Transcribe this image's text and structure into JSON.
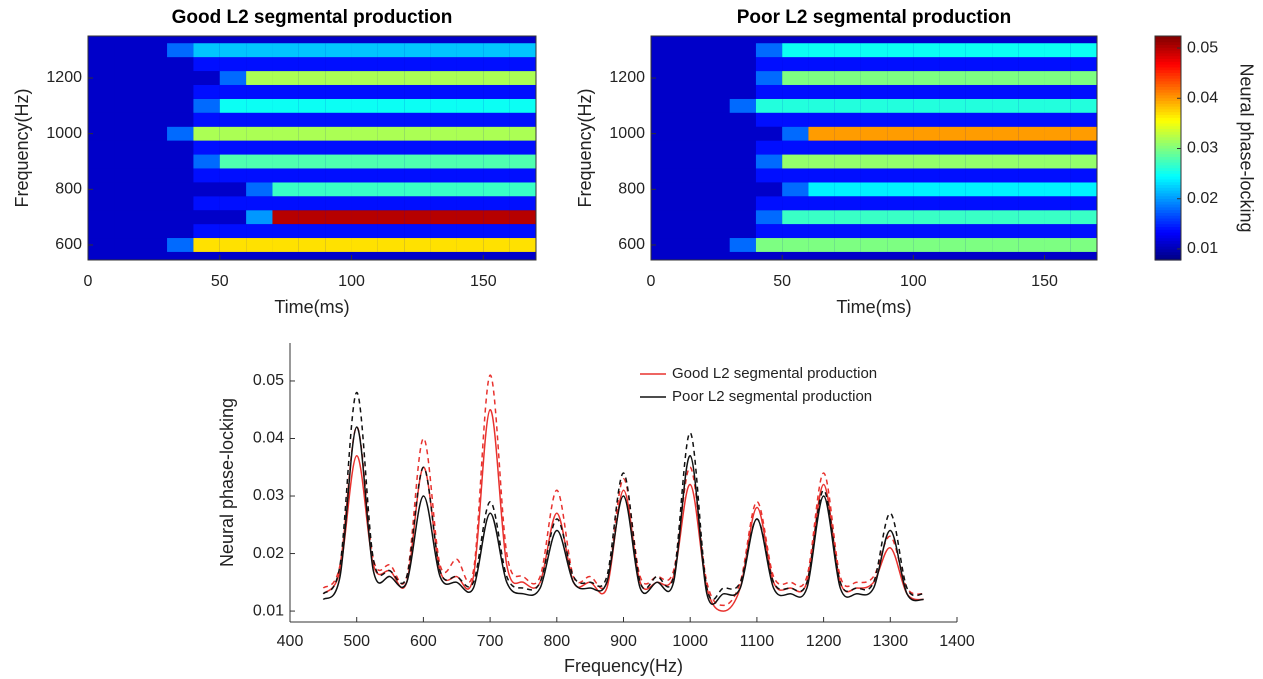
{
  "chart_data": [
    {
      "type": "heatmap",
      "title": "Good L2 segmental production",
      "xlabel": "Time(ms)",
      "ylabel": "Frequency(Hz)",
      "xlim": [
        0,
        170
      ],
      "xticks": [
        0,
        50,
        100,
        150
      ],
      "ylim": [
        546,
        1351
      ],
      "yticks": [
        600,
        800,
        1000,
        1200
      ],
      "x": [
        5,
        15,
        25,
        35,
        45,
        55,
        65,
        75,
        85,
        95,
        105,
        115,
        125,
        135,
        145,
        155,
        165
      ],
      "y": [
        600,
        650,
        700,
        750,
        800,
        850,
        900,
        950,
        1000,
        1050,
        1100,
        1150,
        1200,
        1250,
        1300
      ],
      "values": [
        [
          0.011,
          0.011,
          0.011,
          0.018,
          0.037,
          0.037,
          0.037,
          0.037,
          0.037,
          0.037,
          0.037,
          0.037,
          0.037,
          0.037,
          0.037,
          0.037,
          0.037
        ],
        [
          0.011,
          0.011,
          0.011,
          0.011,
          0.014,
          0.014,
          0.014,
          0.014,
          0.014,
          0.014,
          0.014,
          0.014,
          0.014,
          0.014,
          0.014,
          0.014,
          0.014
        ],
        [
          0.011,
          0.011,
          0.011,
          0.011,
          0.011,
          0.011,
          0.02,
          0.05,
          0.05,
          0.05,
          0.05,
          0.05,
          0.05,
          0.05,
          0.05,
          0.05,
          0.05
        ],
        [
          0.011,
          0.011,
          0.011,
          0.011,
          0.014,
          0.014,
          0.014,
          0.014,
          0.014,
          0.014,
          0.014,
          0.014,
          0.014,
          0.014,
          0.014,
          0.014,
          0.014
        ],
        [
          0.011,
          0.011,
          0.011,
          0.011,
          0.011,
          0.011,
          0.018,
          0.027,
          0.027,
          0.027,
          0.027,
          0.027,
          0.027,
          0.027,
          0.027,
          0.027,
          0.027
        ],
        [
          0.011,
          0.011,
          0.011,
          0.011,
          0.014,
          0.014,
          0.014,
          0.014,
          0.014,
          0.014,
          0.014,
          0.014,
          0.014,
          0.014,
          0.014,
          0.014,
          0.014
        ],
        [
          0.011,
          0.011,
          0.011,
          0.011,
          0.018,
          0.028,
          0.028,
          0.028,
          0.028,
          0.028,
          0.028,
          0.028,
          0.028,
          0.028,
          0.028,
          0.028,
          0.028
        ],
        [
          0.011,
          0.011,
          0.011,
          0.011,
          0.014,
          0.014,
          0.014,
          0.014,
          0.014,
          0.014,
          0.014,
          0.014,
          0.014,
          0.014,
          0.014,
          0.014,
          0.014
        ],
        [
          0.011,
          0.011,
          0.011,
          0.018,
          0.032,
          0.032,
          0.032,
          0.032,
          0.032,
          0.032,
          0.032,
          0.032,
          0.032,
          0.032,
          0.032,
          0.032,
          0.032
        ],
        [
          0.011,
          0.011,
          0.011,
          0.011,
          0.014,
          0.014,
          0.014,
          0.014,
          0.014,
          0.014,
          0.014,
          0.014,
          0.014,
          0.014,
          0.014,
          0.014,
          0.014
        ],
        [
          0.011,
          0.011,
          0.011,
          0.011,
          0.018,
          0.025,
          0.025,
          0.025,
          0.025,
          0.025,
          0.025,
          0.025,
          0.025,
          0.025,
          0.025,
          0.025,
          0.025
        ],
        [
          0.011,
          0.011,
          0.011,
          0.011,
          0.014,
          0.014,
          0.014,
          0.014,
          0.014,
          0.014,
          0.014,
          0.014,
          0.014,
          0.014,
          0.014,
          0.014,
          0.014
        ],
        [
          0.011,
          0.011,
          0.011,
          0.011,
          0.011,
          0.018,
          0.032,
          0.032,
          0.032,
          0.032,
          0.032,
          0.032,
          0.032,
          0.032,
          0.032,
          0.032,
          0.032
        ],
        [
          0.011,
          0.011,
          0.011,
          0.011,
          0.014,
          0.014,
          0.014,
          0.014,
          0.014,
          0.014,
          0.014,
          0.014,
          0.014,
          0.014,
          0.014,
          0.014,
          0.014
        ],
        [
          0.011,
          0.011,
          0.011,
          0.018,
          0.022,
          0.022,
          0.022,
          0.022,
          0.022,
          0.022,
          0.022,
          0.022,
          0.022,
          0.022,
          0.022,
          0.022,
          0.022
        ]
      ]
    },
    {
      "type": "heatmap",
      "title": "Poor L2 segmental production",
      "xlabel": "Time(ms)",
      "ylabel": "Frequency(Hz)",
      "xlim": [
        0,
        170
      ],
      "xticks": [
        0,
        50,
        100,
        150
      ],
      "ylim": [
        546,
        1351
      ],
      "yticks": [
        600,
        800,
        1000,
        1200
      ],
      "x": [
        5,
        15,
        25,
        35,
        45,
        55,
        65,
        75,
        85,
        95,
        105,
        115,
        125,
        135,
        145,
        155,
        165
      ],
      "y": [
        600,
        650,
        700,
        750,
        800,
        850,
        900,
        950,
        1000,
        1050,
        1100,
        1150,
        1200,
        1250,
        1300
      ],
      "values": [
        [
          0.011,
          0.011,
          0.011,
          0.018,
          0.03,
          0.03,
          0.03,
          0.03,
          0.03,
          0.03,
          0.03,
          0.03,
          0.03,
          0.03,
          0.03,
          0.03,
          0.03
        ],
        [
          0.011,
          0.011,
          0.011,
          0.011,
          0.014,
          0.014,
          0.014,
          0.014,
          0.014,
          0.014,
          0.014,
          0.014,
          0.014,
          0.014,
          0.014,
          0.014,
          0.014
        ],
        [
          0.011,
          0.011,
          0.011,
          0.011,
          0.018,
          0.027,
          0.027,
          0.027,
          0.027,
          0.027,
          0.027,
          0.027,
          0.027,
          0.027,
          0.027,
          0.027,
          0.027
        ],
        [
          0.011,
          0.011,
          0.011,
          0.011,
          0.014,
          0.014,
          0.014,
          0.014,
          0.014,
          0.014,
          0.014,
          0.014,
          0.014,
          0.014,
          0.014,
          0.014,
          0.014
        ],
        [
          0.011,
          0.011,
          0.011,
          0.011,
          0.011,
          0.018,
          0.024,
          0.024,
          0.024,
          0.024,
          0.024,
          0.024,
          0.024,
          0.024,
          0.024,
          0.024,
          0.024
        ],
        [
          0.011,
          0.011,
          0.011,
          0.011,
          0.014,
          0.014,
          0.014,
          0.014,
          0.014,
          0.014,
          0.014,
          0.014,
          0.014,
          0.014,
          0.014,
          0.014,
          0.014
        ],
        [
          0.011,
          0.011,
          0.011,
          0.011,
          0.018,
          0.031,
          0.031,
          0.031,
          0.031,
          0.031,
          0.031,
          0.031,
          0.031,
          0.031,
          0.031,
          0.031,
          0.031
        ],
        [
          0.011,
          0.011,
          0.011,
          0.011,
          0.014,
          0.014,
          0.014,
          0.014,
          0.014,
          0.014,
          0.014,
          0.014,
          0.014,
          0.014,
          0.014,
          0.014,
          0.014
        ],
        [
          0.011,
          0.011,
          0.011,
          0.011,
          0.011,
          0.018,
          0.04,
          0.04,
          0.04,
          0.04,
          0.04,
          0.04,
          0.04,
          0.04,
          0.04,
          0.04,
          0.04
        ],
        [
          0.011,
          0.011,
          0.011,
          0.011,
          0.014,
          0.014,
          0.014,
          0.014,
          0.014,
          0.014,
          0.014,
          0.014,
          0.014,
          0.014,
          0.014,
          0.014,
          0.014
        ],
        [
          0.011,
          0.011,
          0.011,
          0.018,
          0.026,
          0.026,
          0.026,
          0.026,
          0.026,
          0.026,
          0.026,
          0.026,
          0.026,
          0.026,
          0.026,
          0.026,
          0.026
        ],
        [
          0.011,
          0.011,
          0.011,
          0.011,
          0.014,
          0.014,
          0.014,
          0.014,
          0.014,
          0.014,
          0.014,
          0.014,
          0.014,
          0.014,
          0.014,
          0.014,
          0.014
        ],
        [
          0.011,
          0.011,
          0.011,
          0.011,
          0.018,
          0.03,
          0.03,
          0.03,
          0.03,
          0.03,
          0.03,
          0.03,
          0.03,
          0.03,
          0.03,
          0.03,
          0.03
        ],
        [
          0.011,
          0.011,
          0.011,
          0.011,
          0.014,
          0.014,
          0.014,
          0.014,
          0.014,
          0.014,
          0.014,
          0.014,
          0.014,
          0.014,
          0.014,
          0.014,
          0.014
        ],
        [
          0.011,
          0.011,
          0.011,
          0.011,
          0.018,
          0.025,
          0.025,
          0.025,
          0.025,
          0.025,
          0.025,
          0.025,
          0.025,
          0.025,
          0.025,
          0.025,
          0.025
        ]
      ]
    },
    {
      "type": "colorbar",
      "label": "Neural phase-locking",
      "clim": [
        0.0078,
        0.0524
      ],
      "ticks": [
        0.01,
        0.02,
        0.03,
        0.04,
        0.05
      ],
      "colormap": "jet"
    },
    {
      "type": "line",
      "xlabel": "Frequency(Hz)",
      "ylabel": "Neural phase-locking",
      "xlim": [
        400,
        1400
      ],
      "xticks": [
        400,
        500,
        600,
        700,
        800,
        900,
        1000,
        1100,
        1200,
        1300,
        1400
      ],
      "ylim": [
        0.0081,
        0.0566
      ],
      "yticks": [
        0.01,
        0.02,
        0.03,
        0.04,
        0.05
      ],
      "legend": "top-right",
      "x": [
        450,
        475,
        500,
        525,
        550,
        575,
        600,
        625,
        650,
        675,
        700,
        725,
        750,
        775,
        800,
        825,
        850,
        875,
        900,
        925,
        950,
        975,
        1000,
        1025,
        1050,
        1075,
        1100,
        1125,
        1150,
        1175,
        1200,
        1225,
        1250,
        1275,
        1300,
        1325,
        1350
      ],
      "series": [
        {
          "name": "Good L2 segmental production",
          "color": "#e8322e",
          "dash": false,
          "values": [
            0.013,
            0.017,
            0.037,
            0.018,
            0.017,
            0.015,
            0.035,
            0.017,
            0.016,
            0.016,
            0.045,
            0.018,
            0.015,
            0.015,
            0.027,
            0.015,
            0.015,
            0.014,
            0.031,
            0.015,
            0.015,
            0.016,
            0.032,
            0.014,
            0.01,
            0.014,
            0.028,
            0.015,
            0.014,
            0.015,
            0.032,
            0.015,
            0.014,
            0.015,
            0.021,
            0.013,
            0.012
          ]
        },
        {
          "color": "#e8322e",
          "dash": true,
          "values": [
            0.014,
            0.018,
            0.042,
            0.019,
            0.018,
            0.016,
            0.04,
            0.018,
            0.019,
            0.017,
            0.051,
            0.02,
            0.016,
            0.016,
            0.031,
            0.016,
            0.016,
            0.015,
            0.033,
            0.016,
            0.016,
            0.017,
            0.035,
            0.015,
            0.011,
            0.015,
            0.029,
            0.016,
            0.015,
            0.016,
            0.034,
            0.016,
            0.015,
            0.016,
            0.023,
            0.014,
            0.013
          ]
        },
        {
          "name": "Poor L2 segmental production",
          "color": "#111111",
          "dash": false,
          "values": [
            0.012,
            0.016,
            0.042,
            0.017,
            0.016,
            0.015,
            0.03,
            0.016,
            0.015,
            0.014,
            0.027,
            0.015,
            0.013,
            0.014,
            0.024,
            0.015,
            0.014,
            0.015,
            0.03,
            0.014,
            0.015,
            0.015,
            0.037,
            0.013,
            0.013,
            0.014,
            0.026,
            0.014,
            0.013,
            0.014,
            0.03,
            0.014,
            0.013,
            0.014,
            0.024,
            0.013,
            0.012
          ]
        },
        {
          "color": "#111111",
          "dash": true,
          "values": [
            0.013,
            0.018,
            0.048,
            0.019,
            0.017,
            0.016,
            0.035,
            0.017,
            0.016,
            0.015,
            0.029,
            0.016,
            0.014,
            0.015,
            0.026,
            0.016,
            0.015,
            0.016,
            0.034,
            0.015,
            0.016,
            0.016,
            0.041,
            0.014,
            0.014,
            0.015,
            0.026,
            0.015,
            0.014,
            0.015,
            0.031,
            0.015,
            0.014,
            0.015,
            0.027,
            0.014,
            0.013
          ]
        }
      ]
    }
  ]
}
